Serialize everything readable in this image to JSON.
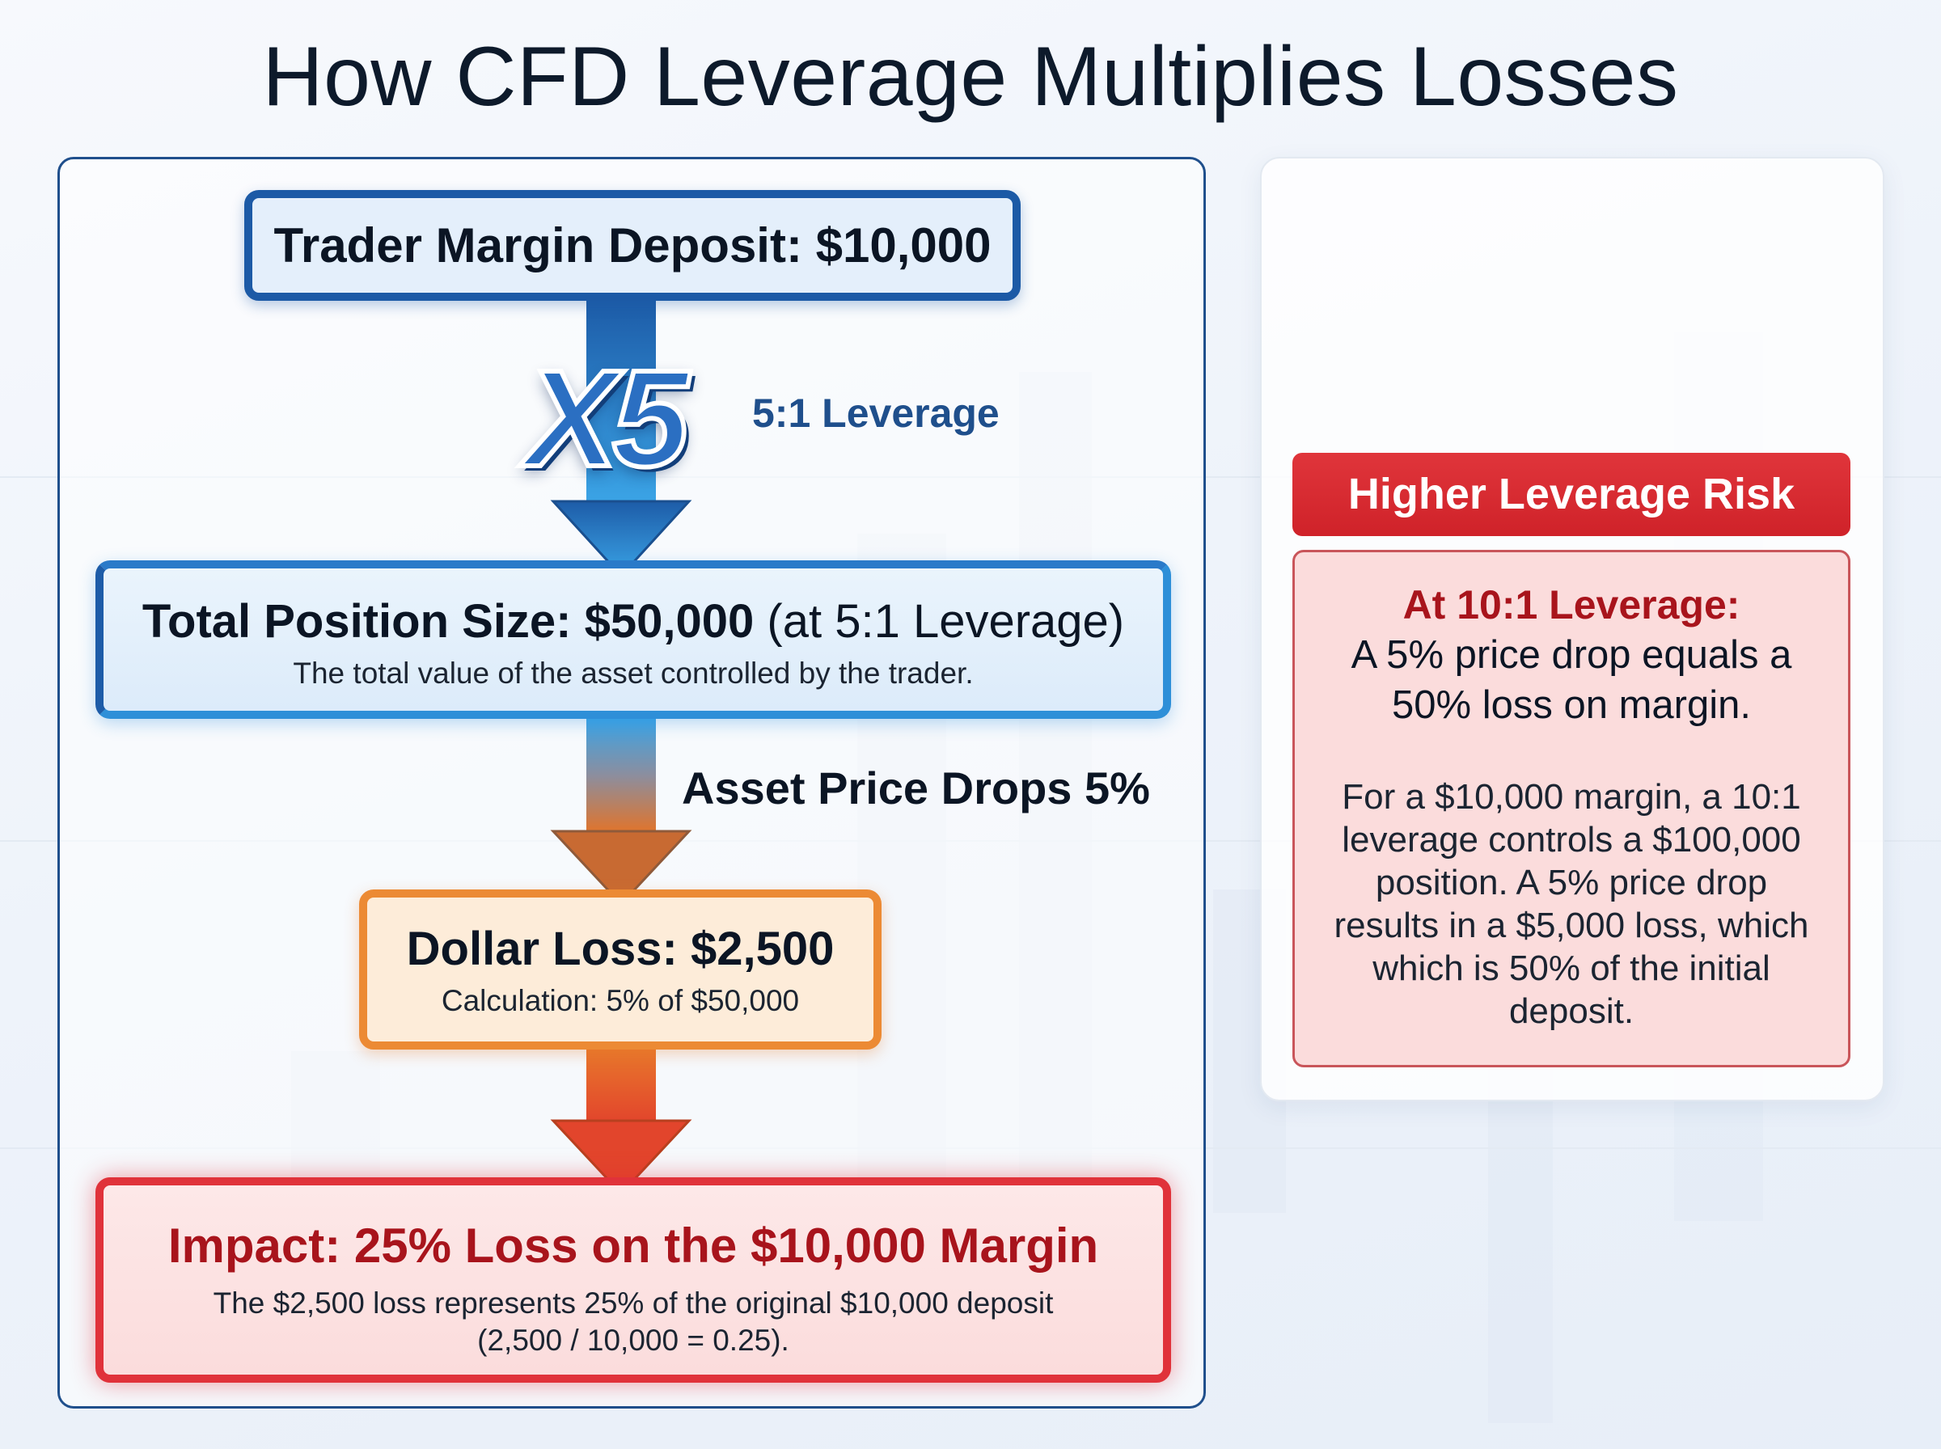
{
  "title": "How CFD Leverage Multiplies Losses",
  "flow": {
    "deposit": "Trader Margin Deposit: $10,000",
    "multiplier": "X5",
    "leverage_label": "5:1 Leverage",
    "position_title": "Total Position Size: $50,000",
    "position_suffix": " (at 5:1 Leverage)",
    "position_sub": "The total value of the asset controlled by the trader.",
    "drop_label": "Asset Price Drops 5%",
    "loss_title": "Dollar Loss: $2,500",
    "loss_sub": "Calculation: 5% of $50,000",
    "impact_title": "Impact: 25% Loss on the $10,000 Margin",
    "impact_sub_1": "The $2,500 loss represents 25% of the original $10,000 deposit",
    "impact_sub_2": "(2,500 / 10,000 = 0.25)."
  },
  "risk": {
    "header": "Higher Leverage Risk",
    "subheader": "At 10:1 Leverage:",
    "line_1": "A 5% price drop equals a",
    "line_2": "50% loss on margin.",
    "para_1": "For a $10,000 margin, a 10:1",
    "para_2": "leverage controls a $100,000",
    "para_3": "position. A 5% price drop",
    "para_4": "results in a $5,000 loss, which",
    "para_5": "which is 50% of the initial",
    "para_6": "deposit."
  },
  "colors": {
    "blue": "#1c5aa6",
    "light_blue": "#2e8fd8",
    "orange": "#ec8a34",
    "red": "#e0323a",
    "dark_red": "#a8141c"
  }
}
